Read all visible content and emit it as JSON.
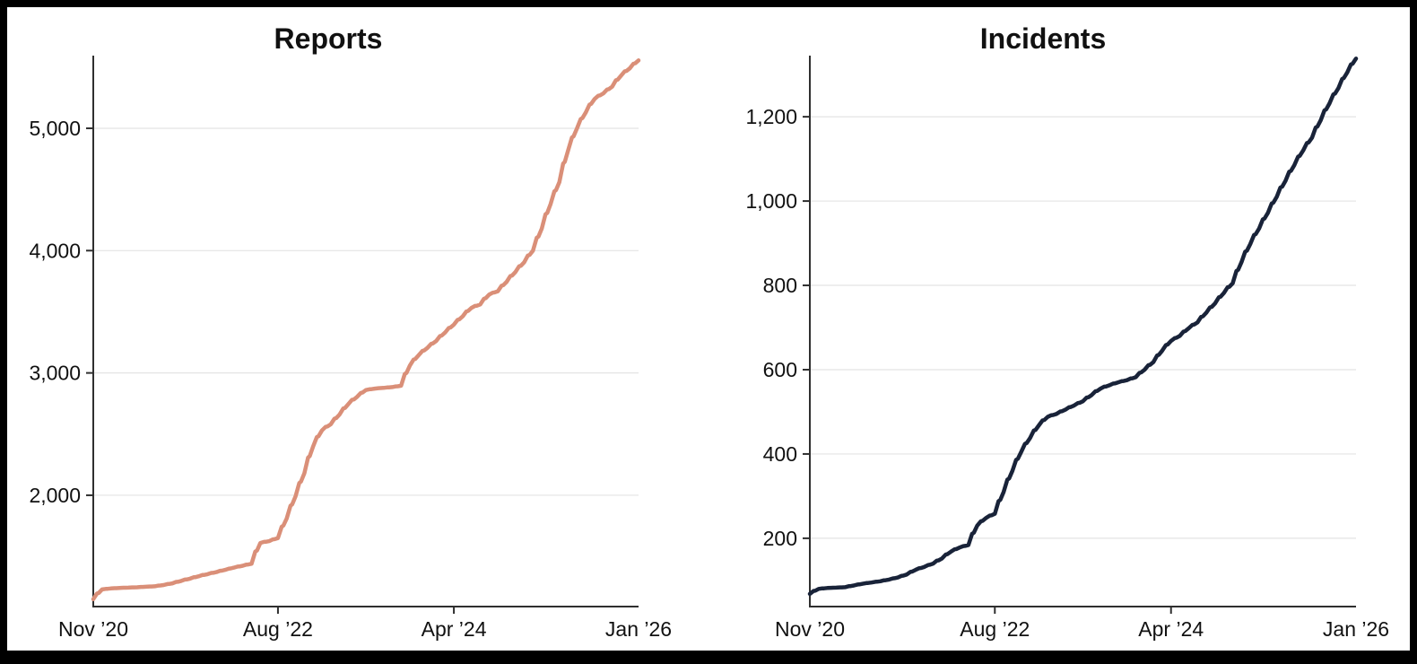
{
  "page": {
    "frame_color": "#000000",
    "canvas_color": "#ffffff",
    "grid_color": "#e4e4e4",
    "axis_color": "#2f2f2f",
    "text_color": "#111111"
  },
  "chart_data": [
    {
      "key": "reports",
      "type": "line",
      "title": "Reports",
      "line_color": "#da8f78",
      "x_unit": "months since Nov 2020 (monthly cumulative totals, Nov 2020 - Jan 2026)",
      "x_tick_labels": [
        "Nov ’20",
        "Aug ’22",
        "Apr ’24",
        "Jan ’26"
      ],
      "x_tick_months": [
        0,
        21,
        41,
        62
      ],
      "y_ticks": [
        2000,
        3000,
        4000,
        5000
      ],
      "y_tick_labels": [
        "2,000",
        "3,000",
        "4,000",
        "5,000"
      ],
      "ylim": [
        1090,
        5594
      ],
      "grid": true,
      "legend": "none",
      "values": [
        1150,
        1230,
        1238,
        1242,
        1245,
        1248,
        1252,
        1256,
        1266,
        1280,
        1300,
        1318,
        1338,
        1355,
        1372,
        1390,
        1408,
        1424,
        1440,
        1610,
        1625,
        1650,
        1810,
        1990,
        2180,
        2400,
        2530,
        2580,
        2660,
        2745,
        2805,
        2860,
        2872,
        2878,
        2884,
        2895,
        3060,
        3145,
        3205,
        3262,
        3330,
        3395,
        3462,
        3532,
        3560,
        3640,
        3668,
        3745,
        3825,
        3905,
        4000,
        4180,
        4380,
        4560,
        4820,
        5000,
        5130,
        5240,
        5285,
        5340,
        5430,
        5490,
        5555
      ]
    },
    {
      "key": "incidents",
      "type": "line",
      "title": "Incidents",
      "line_color": "#192339",
      "x_unit": "months since Nov 2020 (monthly cumulative totals, Nov 2020 - Jan 2026)",
      "x_tick_labels": [
        "Nov ’20",
        "Aug ’22",
        "Apr ’24",
        "Jan ’26"
      ],
      "x_tick_months": [
        0,
        21,
        41,
        62
      ],
      "y_ticks": [
        200,
        400,
        600,
        800,
        1000,
        1200
      ],
      "y_tick_labels": [
        "200",
        "400",
        "600",
        "800",
        "1,000",
        "1,200"
      ],
      "ylim": [
        38,
        1345
      ],
      "grid": true,
      "legend": "none",
      "values": [
        68,
        80,
        82,
        83,
        84,
        88,
        92,
        95,
        98,
        102,
        107,
        114,
        125,
        132,
        140,
        152,
        168,
        178,
        184,
        230,
        248,
        258,
        310,
        360,
        405,
        438,
        468,
        488,
        495,
        505,
        515,
        525,
        540,
        555,
        563,
        570,
        575,
        582,
        600,
        618,
        645,
        668,
        680,
        698,
        712,
        735,
        757,
        782,
        805,
        855,
        898,
        935,
        972,
        1010,
        1048,
        1085,
        1120,
        1150,
        1192,
        1232,
        1268,
        1305,
        1338
      ]
    }
  ]
}
